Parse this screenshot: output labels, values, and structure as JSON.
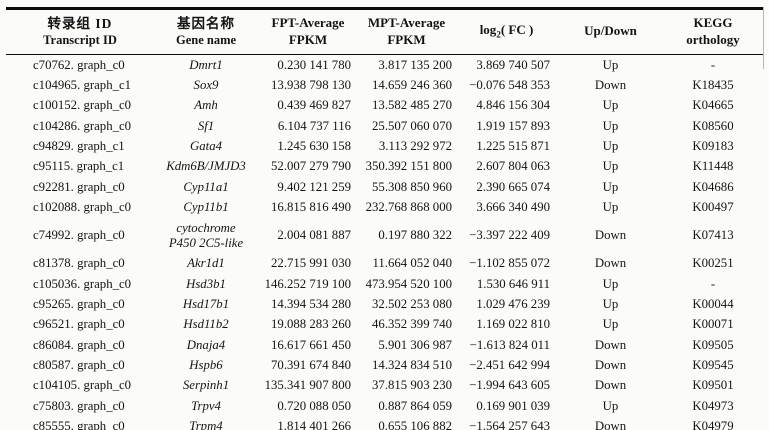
{
  "table": {
    "header": {
      "transcript_id": {
        "cn": "转录组 ID",
        "en": "Transcript ID"
      },
      "gene_name": {
        "cn": "基因名称",
        "en": "Gene name"
      },
      "fpt": {
        "line1": "FPT-Average",
        "line2": "FPKM"
      },
      "mpt": {
        "line1": "MPT-Average",
        "line2": "FPKM"
      },
      "log2fc": {
        "base": "log",
        "sub": "2",
        "args": "( FC )"
      },
      "updown": {
        "label": "Up/Down"
      },
      "kegg": {
        "line1": "KEGG",
        "line2": "orthology"
      }
    },
    "rows": [
      {
        "transcript_id": "c70762. graph_c0",
        "gene_name": "Dmrt1",
        "fpt": "0.230 141 780",
        "mpt": "3.817 135 200",
        "log2fc": "3.869 740 507",
        "updown": "Up",
        "kegg": "-"
      },
      {
        "transcript_id": "c104965. graph_c1",
        "gene_name": "Sox9",
        "fpt": "13.938 798 130",
        "mpt": "14.659 246 360",
        "log2fc": "−0.076 548 353",
        "updown": "Down",
        "kegg": "K18435"
      },
      {
        "transcript_id": "c100152. graph_c0",
        "gene_name": "Amh",
        "fpt": "0.439 469 827",
        "mpt": "13.582 485 270",
        "log2fc": "4.846 156 304",
        "updown": "Up",
        "kegg": "K04665"
      },
      {
        "transcript_id": "c104286. graph_c0",
        "gene_name": "Sf1",
        "fpt": "6.104 737 116",
        "mpt": "25.507 060 070",
        "log2fc": "1.919 157 893",
        "updown": "Up",
        "kegg": "K08560"
      },
      {
        "transcript_id": "c94829. graph_c1",
        "gene_name": "Gata4",
        "fpt": "1.245 630 158",
        "mpt": "3.113 292 972",
        "log2fc": "1.225 515 871",
        "updown": "Up",
        "kegg": "K09183"
      },
      {
        "transcript_id": "c95115. graph_c1",
        "gene_name": "Kdm6B/JMJD3",
        "fpt": "52.007 279 790",
        "mpt": "350.392 151 800",
        "log2fc": "2.607 804 063",
        "updown": "Up",
        "kegg": "K11448"
      },
      {
        "transcript_id": "c92281. graph_c0",
        "gene_name": "Cyp11a1",
        "fpt": "9.402 121 259",
        "mpt": "55.308 850 960",
        "log2fc": "2.390 665 074",
        "updown": "Up",
        "kegg": "K04686"
      },
      {
        "transcript_id": "c102088. graph_c0",
        "gene_name": "Cyp11b1",
        "fpt": "16.815 816 490",
        "mpt": "232.768 868 000",
        "log2fc": "3.666 340 490",
        "updown": "Up",
        "kegg": "K00497"
      },
      {
        "transcript_id": "c74992. graph_c0",
        "gene_name": "cytochrome\nP450 2C5-like",
        "fpt": "2.004 081 887",
        "mpt": "0.197 880 322",
        "log2fc": "−3.397 222 409",
        "updown": "Down",
        "kegg": "K07413"
      },
      {
        "transcript_id": "c81378. graph_c0",
        "gene_name": "Akr1d1",
        "fpt": "22.715 991 030",
        "mpt": "11.664 052 040",
        "log2fc": "−1.102 855 072",
        "updown": "Down",
        "kegg": "K00251"
      },
      {
        "transcript_id": "c105036. graph_c0",
        "gene_name": "Hsd3b1",
        "fpt": "146.252 719 100",
        "mpt": "473.954 520 100",
        "log2fc": "1.530 646 911",
        "updown": "Up",
        "kegg": "-"
      },
      {
        "transcript_id": "c95265. graph_c0",
        "gene_name": "Hsd17b1",
        "fpt": "14.394 534 280",
        "mpt": "32.502 253 080",
        "log2fc": "1.029 476 239",
        "updown": "Up",
        "kegg": "K00044"
      },
      {
        "transcript_id": "c96521. graph_c0",
        "gene_name": "Hsd11b2",
        "fpt": "19.088 283 260",
        "mpt": "46.352 399 740",
        "log2fc": "1.169 022 810",
        "updown": "Up",
        "kegg": "K00071"
      },
      {
        "transcript_id": "c86084. graph_c0",
        "gene_name": "Dnaja4",
        "fpt": "16.617 661 450",
        "mpt": "5.901 306 987",
        "log2fc": "−1.613 824 011",
        "updown": "Down",
        "kegg": "K09505"
      },
      {
        "transcript_id": "c80587. graph_c0",
        "gene_name": "Hspb6",
        "fpt": "70.391 674 840",
        "mpt": "14.324 834 510",
        "log2fc": "−2.451 642 994",
        "updown": "Down",
        "kegg": "K09545"
      },
      {
        "transcript_id": "c104105. graph_c0",
        "gene_name": "Serpinh1",
        "fpt": "135.341 907 800",
        "mpt": "37.815 903 230",
        "log2fc": "−1.994 643 605",
        "updown": "Down",
        "kegg": "K09501"
      },
      {
        "transcript_id": "c75803. graph_c0",
        "gene_name": "Trpv4",
        "fpt": "0.720 088 050",
        "mpt": "0.887 864 059",
        "log2fc": "0.169 901 039",
        "updown": "Up",
        "kegg": "K04973"
      },
      {
        "transcript_id": "c85555. graph_c0",
        "gene_name": "Trpm4",
        "fpt": "1.814 401 266",
        "mpt": "0.655 106 882",
        "log2fc": "−1.564 257 643",
        "updown": "Down",
        "kegg": "K04979"
      }
    ]
  }
}
